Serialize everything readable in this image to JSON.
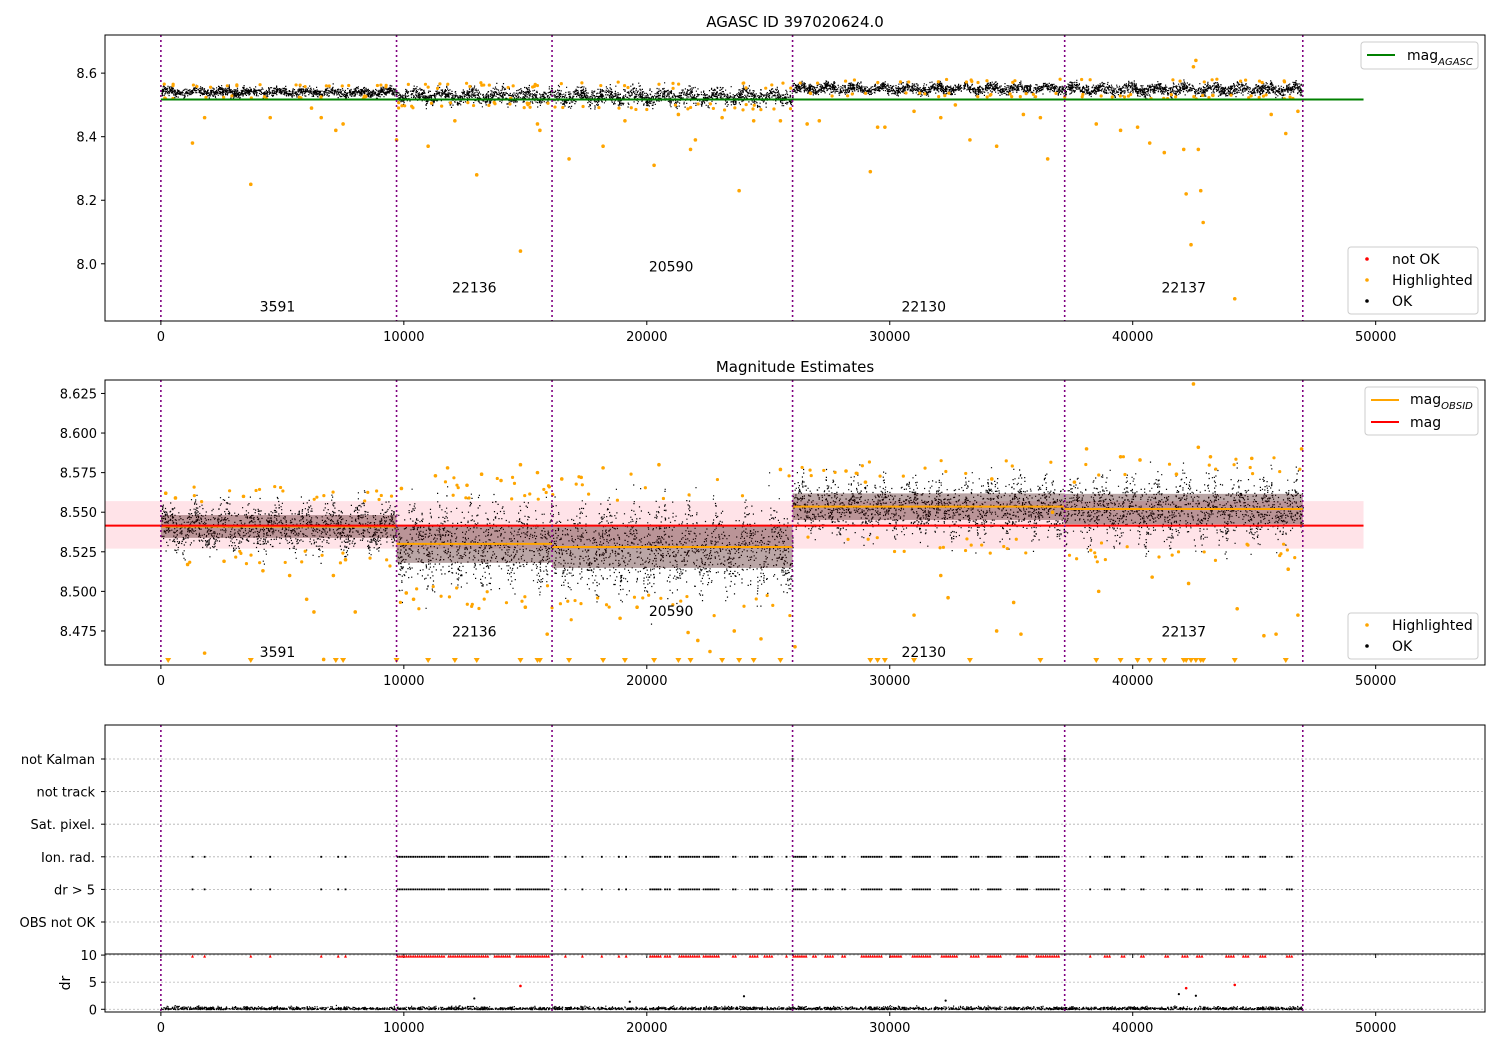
{
  "figure": {
    "obsid_boundaries": [
      0,
      9700,
      16100,
      26000,
      37200,
      47000
    ],
    "boundary_color": "#800080",
    "colors": {
      "ok": "#000000",
      "highlighted": "#FFA500",
      "not_ok": "#FF0000",
      "agasc_line": "#008000",
      "obsid_line": "#FFA500",
      "mag_line": "#FF0000",
      "mag_band": "#FFC0CB"
    }
  },
  "chart_data": [
    {
      "type": "scatter",
      "title": "AGASC ID 397020624.0",
      "xlim": [
        -2300,
        54500
      ],
      "ylim": [
        7.82,
        8.72
      ],
      "x_ticks": [
        0,
        10000,
        20000,
        30000,
        40000,
        50000
      ],
      "y_ticks": [
        8.0,
        8.2,
        8.4,
        8.6
      ],
      "y_tick_labels": [
        "8.0",
        "8.2",
        "8.4",
        "8.6"
      ],
      "legend_upper": {
        "placement": "top-right",
        "entries": [
          {
            "label": "mag",
            "sub": "AGASC",
            "color": "#008000"
          }
        ]
      },
      "legend_lower": {
        "placement": "bottom-right",
        "entries": [
          "not OK",
          "Highlighted",
          "OK"
        ]
      },
      "agasc_mag": {
        "value": 8.517,
        "x_range": [
          0,
          49500
        ]
      },
      "obsid_labels": [
        {
          "text": "3591",
          "x": 4800,
          "y": 7.85
        },
        {
          "text": "22136",
          "x": 12900,
          "y": 7.91
        },
        {
          "text": "20590",
          "x": 21000,
          "y": 7.975
        },
        {
          "text": "22130",
          "x": 31400,
          "y": 7.85
        },
        {
          "text": "22137",
          "x": 42100,
          "y": 7.91
        }
      ],
      "segments": [
        {
          "x": [
            0,
            9700
          ],
          "mean": 8.542,
          "spread": 0.012
        },
        {
          "x": [
            9700,
            16100
          ],
          "mean": 8.53,
          "spread": 0.02
        },
        {
          "x": [
            16100,
            26000
          ],
          "mean": 8.528,
          "spread": 0.022
        },
        {
          "x": [
            26000,
            37200
          ],
          "mean": 8.553,
          "spread": 0.014
        },
        {
          "x": [
            37200,
            47000
          ],
          "mean": 8.551,
          "spread": 0.016
        }
      ],
      "highlighted_points": [
        [
          1300,
          8.38
        ],
        [
          1800,
          8.46
        ],
        [
          3700,
          8.25
        ],
        [
          4500,
          8.46
        ],
        [
          6200,
          8.49
        ],
        [
          6600,
          8.46
        ],
        [
          7200,
          8.42
        ],
        [
          7500,
          8.44
        ],
        [
          9700,
          8.39
        ],
        [
          11000,
          8.37
        ],
        [
          12100,
          8.45
        ],
        [
          13000,
          8.28
        ],
        [
          14400,
          8.52
        ],
        [
          14800,
          8.04
        ],
        [
          15500,
          8.44
        ],
        [
          15600,
          8.42
        ],
        [
          16800,
          8.33
        ],
        [
          18200,
          8.37
        ],
        [
          19100,
          8.45
        ],
        [
          20300,
          8.31
        ],
        [
          21300,
          8.47
        ],
        [
          21800,
          8.36
        ],
        [
          22000,
          8.39
        ],
        [
          23100,
          8.46
        ],
        [
          23800,
          8.23
        ],
        [
          24400,
          8.45
        ],
        [
          25500,
          8.45
        ],
        [
          26600,
          8.44
        ],
        [
          27100,
          8.45
        ],
        [
          29200,
          8.29
        ],
        [
          29500,
          8.43
        ],
        [
          29800,
          8.43
        ],
        [
          31000,
          8.48
        ],
        [
          32100,
          8.46
        ],
        [
          32700,
          8.5
        ],
        [
          33300,
          8.39
        ],
        [
          34400,
          8.37
        ],
        [
          35500,
          8.47
        ],
        [
          36200,
          8.46
        ],
        [
          36500,
          8.33
        ],
        [
          38500,
          8.44
        ],
        [
          39500,
          8.42
        ],
        [
          40200,
          8.43
        ],
        [
          40700,
          8.38
        ],
        [
          41300,
          8.35
        ],
        [
          42100,
          8.36
        ],
        [
          42200,
          8.22
        ],
        [
          42400,
          8.06
        ],
        [
          42500,
          8.62
        ],
        [
          42600,
          8.64
        ],
        [
          42700,
          8.36
        ],
        [
          42800,
          8.23
        ],
        [
          42900,
          8.13
        ],
        [
          43300,
          8.53
        ],
        [
          44200,
          7.89
        ],
        [
          45700,
          8.47
        ],
        [
          46300,
          8.41
        ],
        [
          46800,
          8.48
        ]
      ]
    },
    {
      "type": "scatter",
      "title": "Magnitude Estimates",
      "xlim": [
        -2300,
        54500
      ],
      "ylim": [
        8.4535,
        8.6335
      ],
      "x_ticks": [
        0,
        10000,
        20000,
        30000,
        40000,
        50000
      ],
      "y_ticks": [
        8.475,
        8.5,
        8.525,
        8.55,
        8.575,
        8.6,
        8.625
      ],
      "y_tick_labels": [
        "8.475",
        "8.500",
        "8.525",
        "8.550",
        "8.575",
        "8.600",
        "8.625"
      ],
      "legend_upper": {
        "placement": "top-right",
        "entries": [
          {
            "label": "mag",
            "sub": "OBSID",
            "color": "#FFA500"
          },
          {
            "label": "mag",
            "sub": "",
            "color": "#FF0000"
          }
        ]
      },
      "legend_lower": {
        "placement": "bottom-right",
        "entries": [
          "Highlighted",
          "OK"
        ]
      },
      "mag": {
        "value": 8.5415,
        "band": [
          8.527,
          8.557
        ],
        "x_range": [
          -2300,
          49500
        ]
      },
      "obsid_mags": [
        {
          "x": [
            0,
            9700
          ],
          "value": 8.541
        },
        {
          "x": [
            9700,
            16100
          ],
          "value": 8.53
        },
        {
          "x": [
            16100,
            26000
          ],
          "value": 8.528
        },
        {
          "x": [
            26000,
            37200
          ],
          "value": 8.5535
        },
        {
          "x": [
            37200,
            47000
          ],
          "value": 8.552
        }
      ],
      "obsid_labels": [
        {
          "text": "3591",
          "x": 4800,
          "y": 8.4585
        },
        {
          "text": "22136",
          "x": 12900,
          "y": 8.4715
        },
        {
          "text": "20590",
          "x": 21000,
          "y": 8.4845
        },
        {
          "text": "22130",
          "x": 31400,
          "y": 8.4585
        },
        {
          "text": "22137",
          "x": 42100,
          "y": 8.4715
        }
      ],
      "segments": [
        {
          "x": [
            0,
            9700
          ],
          "mean": 8.541,
          "spread": 0.012
        },
        {
          "x": [
            9700,
            16100
          ],
          "mean": 8.53,
          "spread": 0.02
        },
        {
          "x": [
            16100,
            26000
          ],
          "mean": 8.528,
          "spread": 0.022
        },
        {
          "x": [
            26000,
            37200
          ],
          "mean": 8.5535,
          "spread": 0.014
        },
        {
          "x": [
            37200,
            47000
          ],
          "mean": 8.552,
          "spread": 0.016
        }
      ],
      "highlighted_points": [
        [
          200,
          8.562
        ],
        [
          600,
          8.559
        ],
        [
          1100,
          8.517
        ],
        [
          1800,
          8.461
        ],
        [
          2600,
          8.519
        ],
        [
          3400,
          8.56
        ],
        [
          4200,
          8.513
        ],
        [
          5300,
          8.51
        ],
        [
          6000,
          8.495
        ],
        [
          6300,
          8.487
        ],
        [
          6700,
          8.457
        ],
        [
          7100,
          8.51
        ],
        [
          7600,
          8.52
        ],
        [
          8000,
          8.487
        ],
        [
          9900,
          8.565
        ],
        [
          10100,
          8.499
        ],
        [
          10400,
          8.495
        ],
        [
          11300,
          8.573
        ],
        [
          11800,
          8.578
        ],
        [
          12600,
          8.567
        ],
        [
          13200,
          8.574
        ],
        [
          14000,
          8.57
        ],
        [
          14800,
          8.58
        ],
        [
          15000,
          8.49
        ],
        [
          15500,
          8.575
        ],
        [
          15900,
          8.473
        ],
        [
          16500,
          8.571
        ],
        [
          17300,
          8.572
        ],
        [
          18200,
          8.578
        ],
        [
          18900,
          8.483
        ],
        [
          19600,
          8.49
        ],
        [
          20500,
          8.58
        ],
        [
          21700,
          8.474
        ],
        [
          22100,
          8.469
        ],
        [
          22600,
          8.462
        ],
        [
          23600,
          8.475
        ],
        [
          24700,
          8.47
        ],
        [
          25500,
          8.577
        ],
        [
          26100,
          8.465
        ],
        [
          28200,
          8.576
        ],
        [
          29000,
          8.569
        ],
        [
          31000,
          8.485
        ],
        [
          32100,
          8.51
        ],
        [
          32400,
          8.496
        ],
        [
          34200,
          8.571
        ],
        [
          34400,
          8.475
        ],
        [
          35100,
          8.493
        ],
        [
          35400,
          8.473
        ],
        [
          36700,
          8.55
        ],
        [
          37600,
          8.569
        ],
        [
          38100,
          8.59
        ],
        [
          38600,
          8.5
        ],
        [
          39500,
          8.585
        ],
        [
          40300,
          8.583
        ],
        [
          40800,
          8.509
        ],
        [
          41800,
          8.574
        ],
        [
          42300,
          8.505
        ],
        [
          42500,
          8.631
        ],
        [
          42700,
          8.591
        ],
        [
          43200,
          8.585
        ],
        [
          44300,
          8.489
        ],
        [
          44900,
          8.584
        ],
        [
          45400,
          8.472
        ],
        [
          45900,
          8.473
        ],
        [
          46400,
          8.514
        ],
        [
          46800,
          8.485
        ],
        [
          46950,
          8.59
        ]
      ],
      "offscale_markers": [
        300,
        3700,
        7200,
        7500,
        9700,
        11000,
        12100,
        13000,
        14800,
        15500,
        15600,
        16800,
        18200,
        19100,
        20300,
        21300,
        21800,
        23100,
        23800,
        24400,
        25500,
        29200,
        29500,
        29800,
        31000,
        33300,
        36200,
        38500,
        39500,
        40200,
        40700,
        41300,
        42100,
        42200,
        42400,
        42600,
        42800,
        42900,
        44200,
        46300
      ]
    },
    {
      "type": "scatter",
      "title": "",
      "xlim": [
        -2300,
        54500
      ],
      "x_ticks": [
        0,
        10000,
        20000,
        30000,
        40000,
        50000
      ],
      "flag_categories": [
        "not Kalman",
        "not track",
        "Sat. pixel.",
        "Ion. rad.",
        "dr > 5",
        "OBS not OK"
      ],
      "flag_rows_on": [
        "Ion. rad.",
        "dr > 5"
      ],
      "flag_clusters": [
        [
          1300,
          1300
        ],
        [
          1800,
          1800
        ],
        [
          3700,
          3700
        ],
        [
          4500,
          4500
        ],
        [
          6600,
          6600
        ],
        [
          7300,
          7300
        ],
        [
          7600,
          7600
        ],
        [
          9700,
          11700
        ],
        [
          11800,
          13500
        ],
        [
          13700,
          14400
        ],
        [
          14600,
          16000
        ],
        [
          16600,
          16700
        ],
        [
          17300,
          17400
        ],
        [
          18100,
          18200
        ],
        [
          18800,
          18900
        ],
        [
          19100,
          19200
        ],
        [
          20100,
          20600
        ],
        [
          20700,
          21000
        ],
        [
          21300,
          22200
        ],
        [
          22300,
          23000
        ],
        [
          23500,
          23700
        ],
        [
          24200,
          24600
        ],
        [
          24800,
          25200
        ],
        [
          25700,
          25800
        ],
        [
          26000,
          26600
        ],
        [
          26800,
          27000
        ],
        [
          27300,
          27700
        ],
        [
          28000,
          28200
        ],
        [
          28800,
          29700
        ],
        [
          30000,
          30500
        ],
        [
          30900,
          31700
        ],
        [
          32100,
          32800
        ],
        [
          33300,
          33700
        ],
        [
          34000,
          34600
        ],
        [
          35200,
          35700
        ],
        [
          36000,
          37000
        ],
        [
          38200,
          38300
        ],
        [
          38800,
          39100
        ],
        [
          39500,
          39700
        ],
        [
          40300,
          40500
        ],
        [
          41300,
          41500
        ],
        [
          42000,
          42300
        ],
        [
          42600,
          42900
        ],
        [
          43800,
          44200
        ],
        [
          44500,
          44800
        ],
        [
          45200,
          45500
        ],
        [
          46300,
          46600
        ]
      ],
      "dr_ylim": [
        -0.5,
        10.2
      ],
      "dr_ylabel": "dr",
      "dr_y_ticks": [
        0,
        5,
        10
      ],
      "dr_highlight_points": [
        [
          14800,
          4.3
        ],
        [
          42200,
          3.9
        ],
        [
          44200,
          4.5
        ]
      ],
      "dr_outliers": [
        [
          12900,
          2.0
        ],
        [
          24000,
          2.4
        ],
        [
          32300,
          1.6
        ],
        [
          41900,
          2.8
        ],
        [
          42600,
          2.5
        ],
        [
          19300,
          1.4
        ]
      ]
    }
  ]
}
